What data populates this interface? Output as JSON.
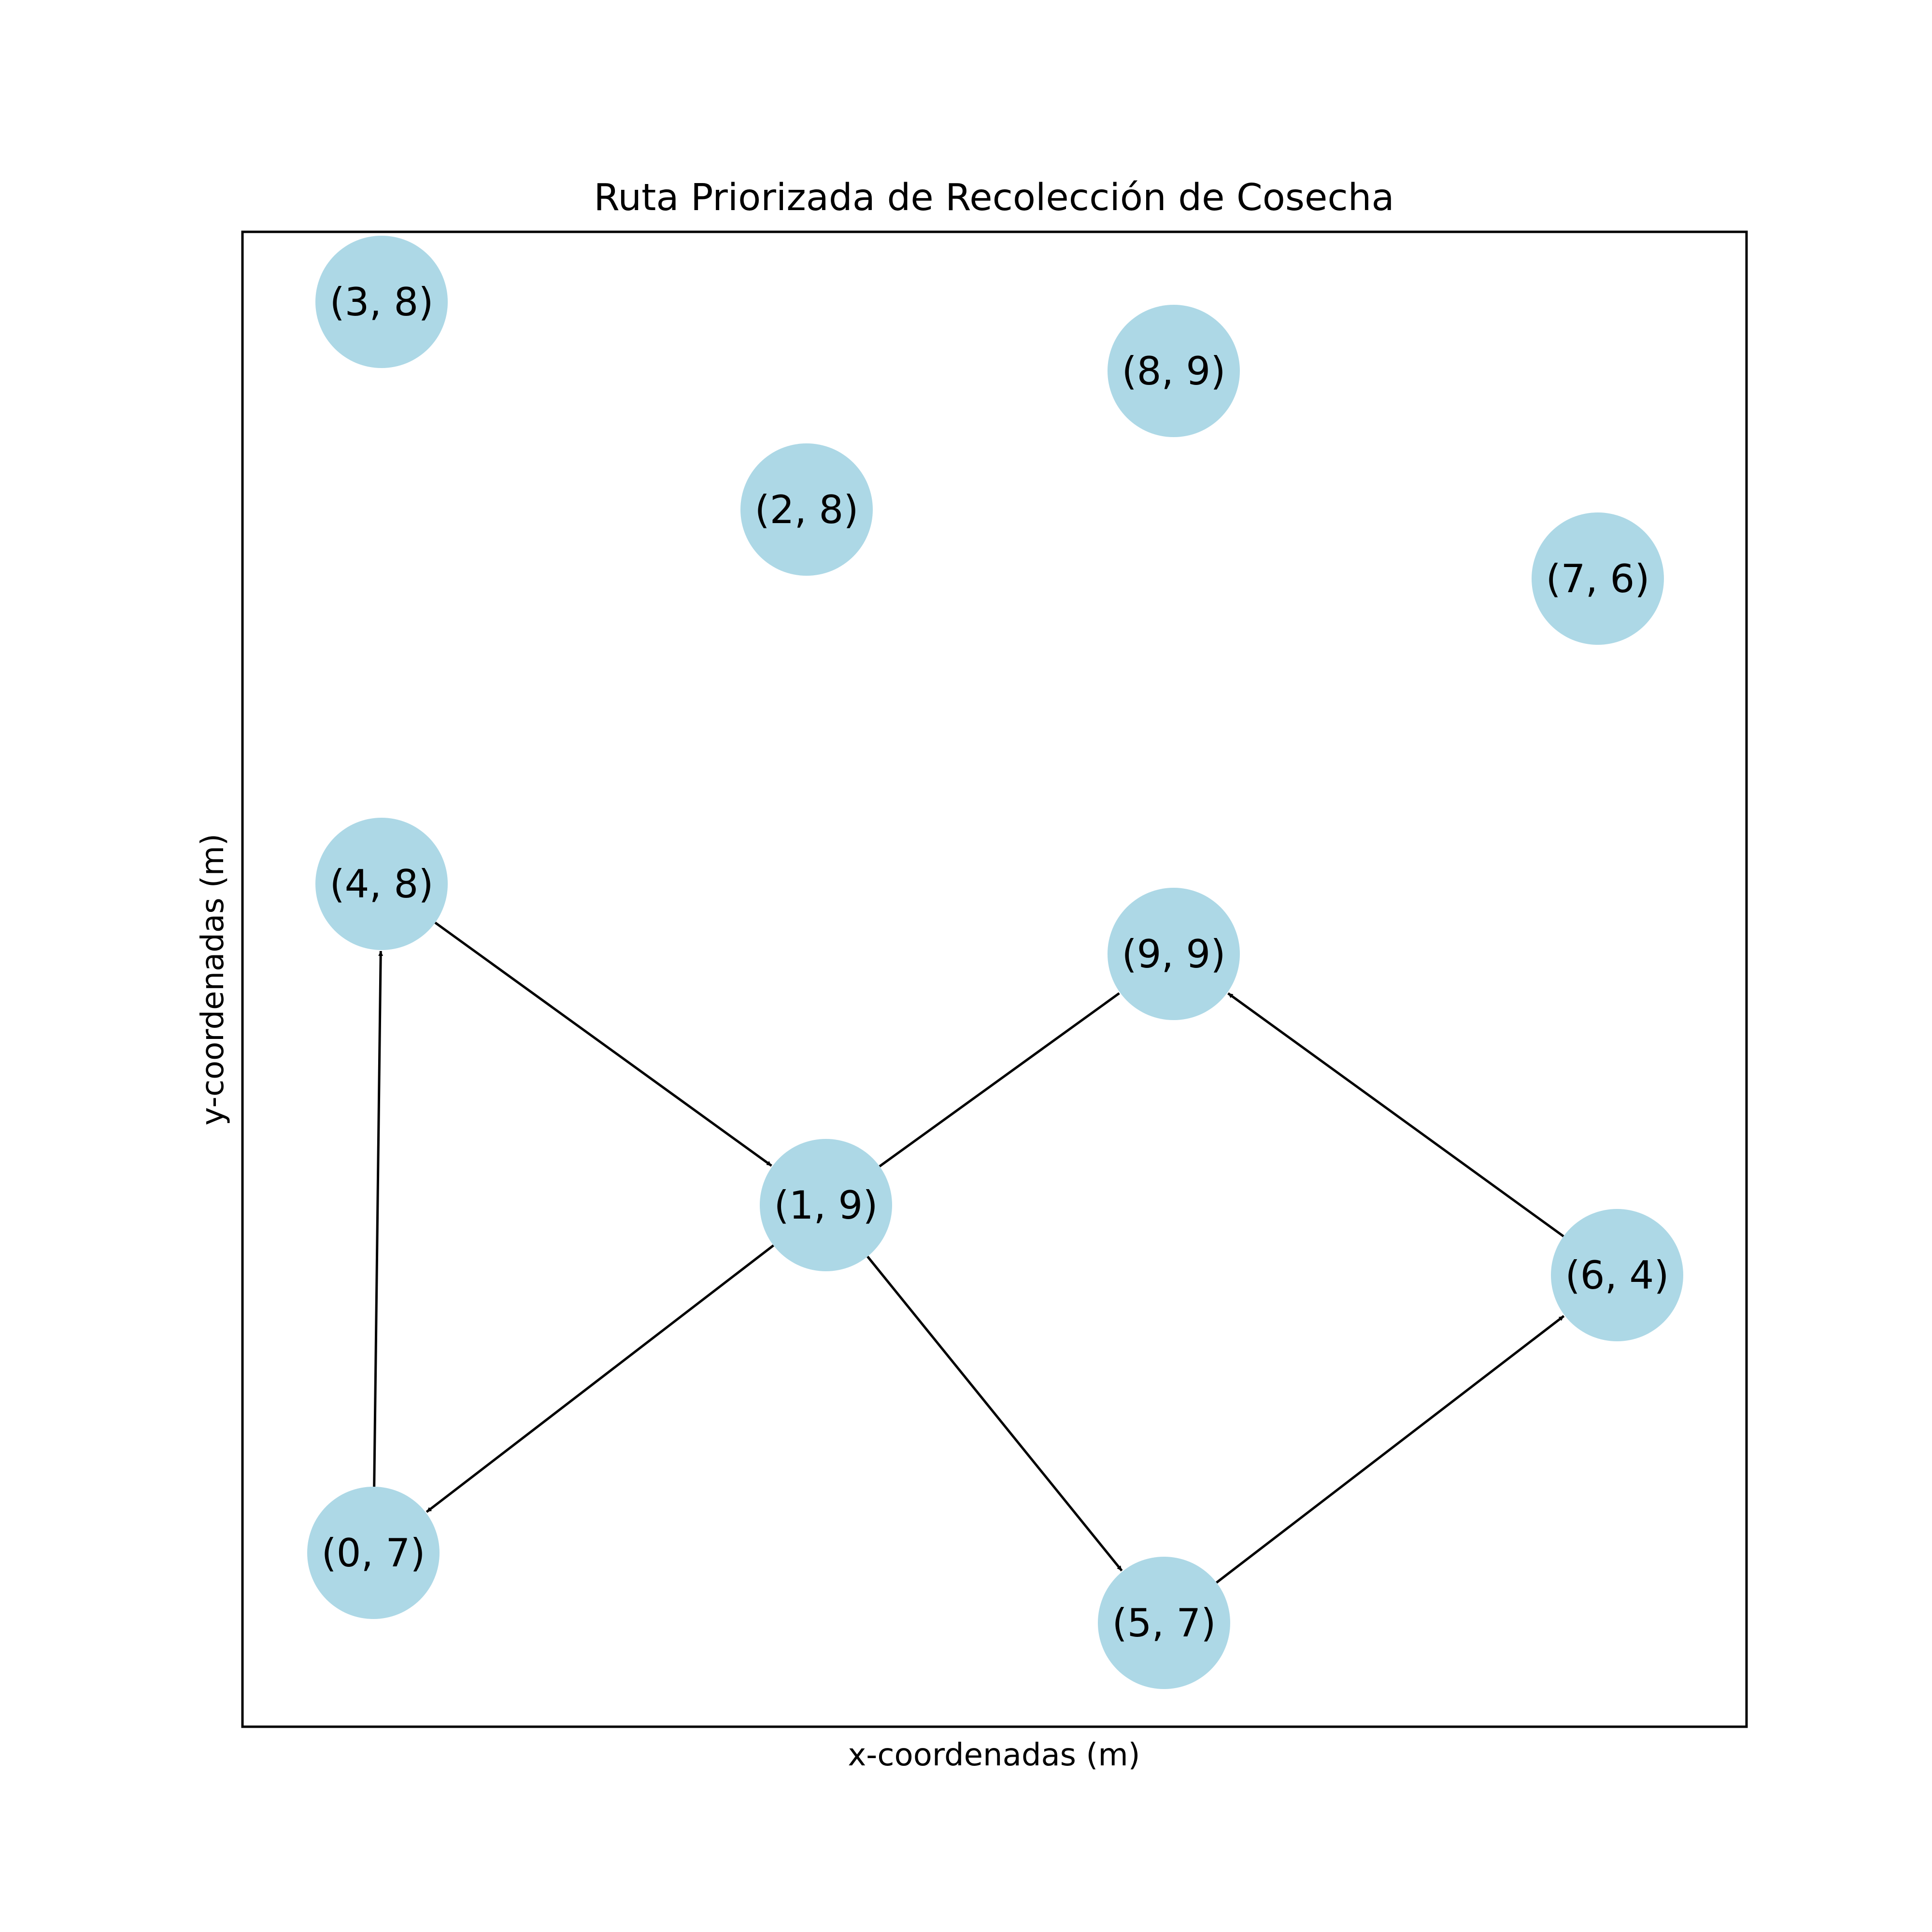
{
  "title": "Ruta Priorizada de Recolección de Cosecha",
  "xlabel": "x-coordenadas (m)",
  "ylabel": "y-coordenadas (m)",
  "colors": {
    "node_fill": "#add8e6",
    "edge": "#000000",
    "frame": "#000000",
    "background": "#ffffff"
  },
  "nodes": [
    {
      "id": "n38",
      "label": "(3, 8)"
    },
    {
      "id": "n89",
      "label": "(8, 9)"
    },
    {
      "id": "n28",
      "label": "(2, 8)"
    },
    {
      "id": "n76",
      "label": "(7, 6)"
    },
    {
      "id": "n48",
      "label": "(4, 8)"
    },
    {
      "id": "n99",
      "label": "(9, 9)"
    },
    {
      "id": "n19",
      "label": "(1, 9)"
    },
    {
      "id": "n64",
      "label": "(6, 4)"
    },
    {
      "id": "n07",
      "label": "(0, 7)"
    },
    {
      "id": "n57",
      "label": "(5, 7)"
    }
  ],
  "edges": [
    {
      "from": "(4, 8)",
      "to": "(1, 9)",
      "directed": true
    },
    {
      "from": "(1, 9)",
      "to": "(9, 9)",
      "directed": false
    },
    {
      "from": "(1, 9)",
      "to": "(0, 7)",
      "directed": true
    },
    {
      "from": "(1, 9)",
      "to": "(5, 7)",
      "directed": true
    },
    {
      "from": "(0, 7)",
      "to": "(4, 8)",
      "directed": true
    },
    {
      "from": "(5, 7)",
      "to": "(6, 4)",
      "directed": true
    },
    {
      "from": "(6, 4)",
      "to": "(9, 9)",
      "directed": true
    }
  ]
}
